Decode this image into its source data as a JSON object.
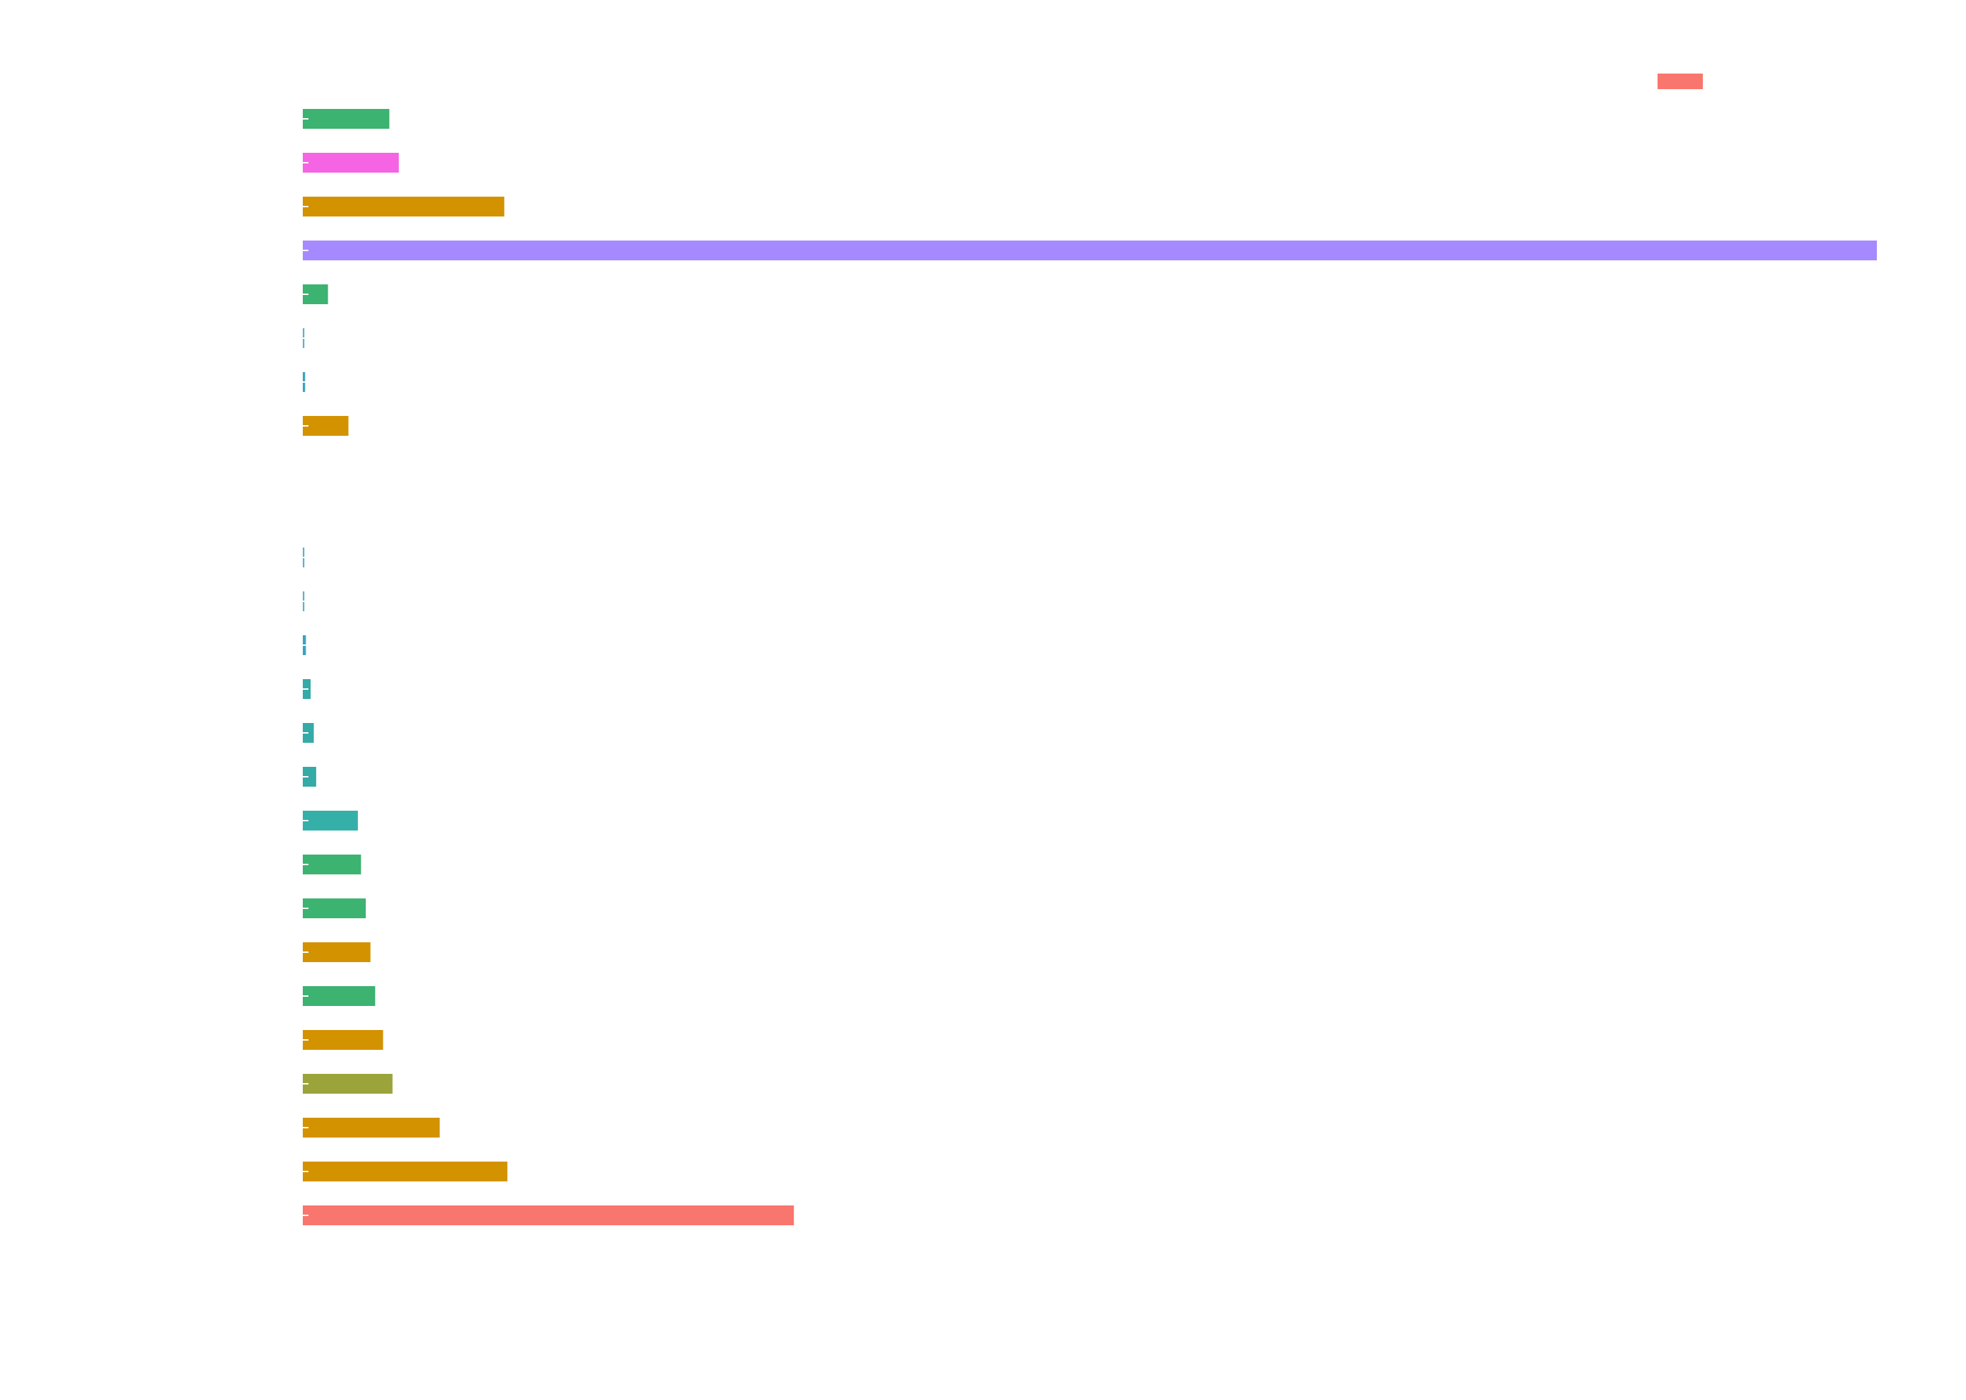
{
  "chart_data": {
    "type": "bar",
    "orientation": "horizontal",
    "title": "",
    "xlabel": "",
    "ylabel": "",
    "xlim": [
      0,
      100
    ],
    "grid": false,
    "legend": {
      "placement": "top-right",
      "entries": [
        {
          "name": "",
          "color": "#F8766D"
        }
      ]
    },
    "bars": [
      {
        "value": 5.5,
        "color": "#3CB371"
      },
      {
        "value": 6.1,
        "color": "#F564E3"
      },
      {
        "value": 12.8,
        "color": "#D39200"
      },
      {
        "value": 100.0,
        "color": "#A58AFF"
      },
      {
        "value": 1.6,
        "color": "#3CB371"
      },
      {
        "value": 0.1,
        "color": "#5AB4C8"
      },
      {
        "value": 0.15,
        "color": "#3CA3C1"
      },
      {
        "value": 2.9,
        "color": "#D39200"
      },
      {
        "value": null,
        "color": ""
      },
      {
        "value": null,
        "color": ""
      },
      {
        "value": 0.1,
        "color": "#5AB4C8"
      },
      {
        "value": 0.1,
        "color": "#5AB4C8"
      },
      {
        "value": 0.2,
        "color": "#3CA3C1"
      },
      {
        "value": 0.5,
        "color": "#35AAA7"
      },
      {
        "value": 0.7,
        "color": "#35AAA7"
      },
      {
        "value": 0.85,
        "color": "#35AAA7"
      },
      {
        "value": 3.5,
        "color": "#35B0A8"
      },
      {
        "value": 3.7,
        "color": "#3CB371"
      },
      {
        "value": 4.0,
        "color": "#3CB371"
      },
      {
        "value": 4.3,
        "color": "#D39200"
      },
      {
        "value": 4.6,
        "color": "#3CB371"
      },
      {
        "value": 5.1,
        "color": "#D39200"
      },
      {
        "value": 5.7,
        "color": "#9AA43A"
      },
      {
        "value": 8.7,
        "color": "#D39200"
      },
      {
        "value": 13.0,
        "color": "#D39200"
      },
      {
        "value": 31.2,
        "color": "#F8766D"
      }
    ]
  }
}
